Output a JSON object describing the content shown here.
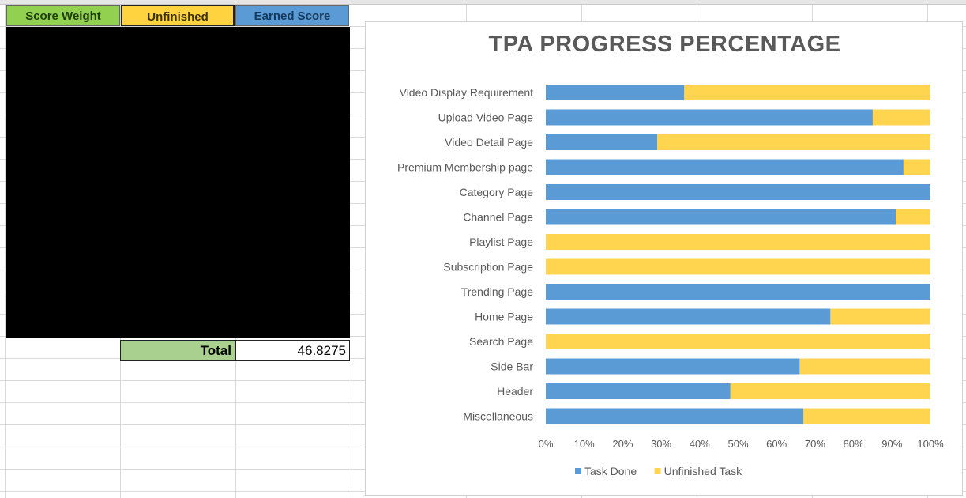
{
  "sheet": {
    "headers": [
      "Score Weight",
      "Unfinished",
      "Earned Score"
    ],
    "total_label": "Total",
    "total_value": "46.8275",
    "colors": {
      "score_weight": "#92d050",
      "unfinished": "#ffd23f",
      "earned_score": "#5b9bd5",
      "total_fill": "#a9d08e"
    }
  },
  "chart_data": {
    "type": "bar",
    "orientation": "horizontal",
    "stacked": "100%",
    "title": "TPA PROGRESS PERCENTAGE",
    "categories": [
      "Video Display Requirement",
      "Upload Video Page",
      "Video Detail Page",
      "Premium Membership page",
      "Category Page",
      "Channel Page",
      "Playlist Page",
      "Subscription Page",
      "Trending Page",
      "Home Page",
      "Search Page",
      "Side Bar",
      "Header",
      "Miscellaneous"
    ],
    "series": [
      {
        "name": "Task Done",
        "color": "#5b9bd5",
        "values": [
          36,
          85,
          29,
          93,
          100,
          91,
          0,
          0,
          100,
          74,
          0,
          66,
          48,
          67
        ]
      },
      {
        "name": "Unfinished Task",
        "color": "#ffd54f",
        "values": [
          64,
          15,
          71,
          7,
          0,
          9,
          100,
          100,
          0,
          26,
          100,
          34,
          52,
          33
        ]
      }
    ],
    "xlim": [
      0,
      100
    ],
    "xticks": [
      "0%",
      "10%",
      "20%",
      "30%",
      "40%",
      "50%",
      "60%",
      "70%",
      "80%",
      "90%",
      "100%"
    ],
    "legend_position": "bottom",
    "grid": false
  }
}
